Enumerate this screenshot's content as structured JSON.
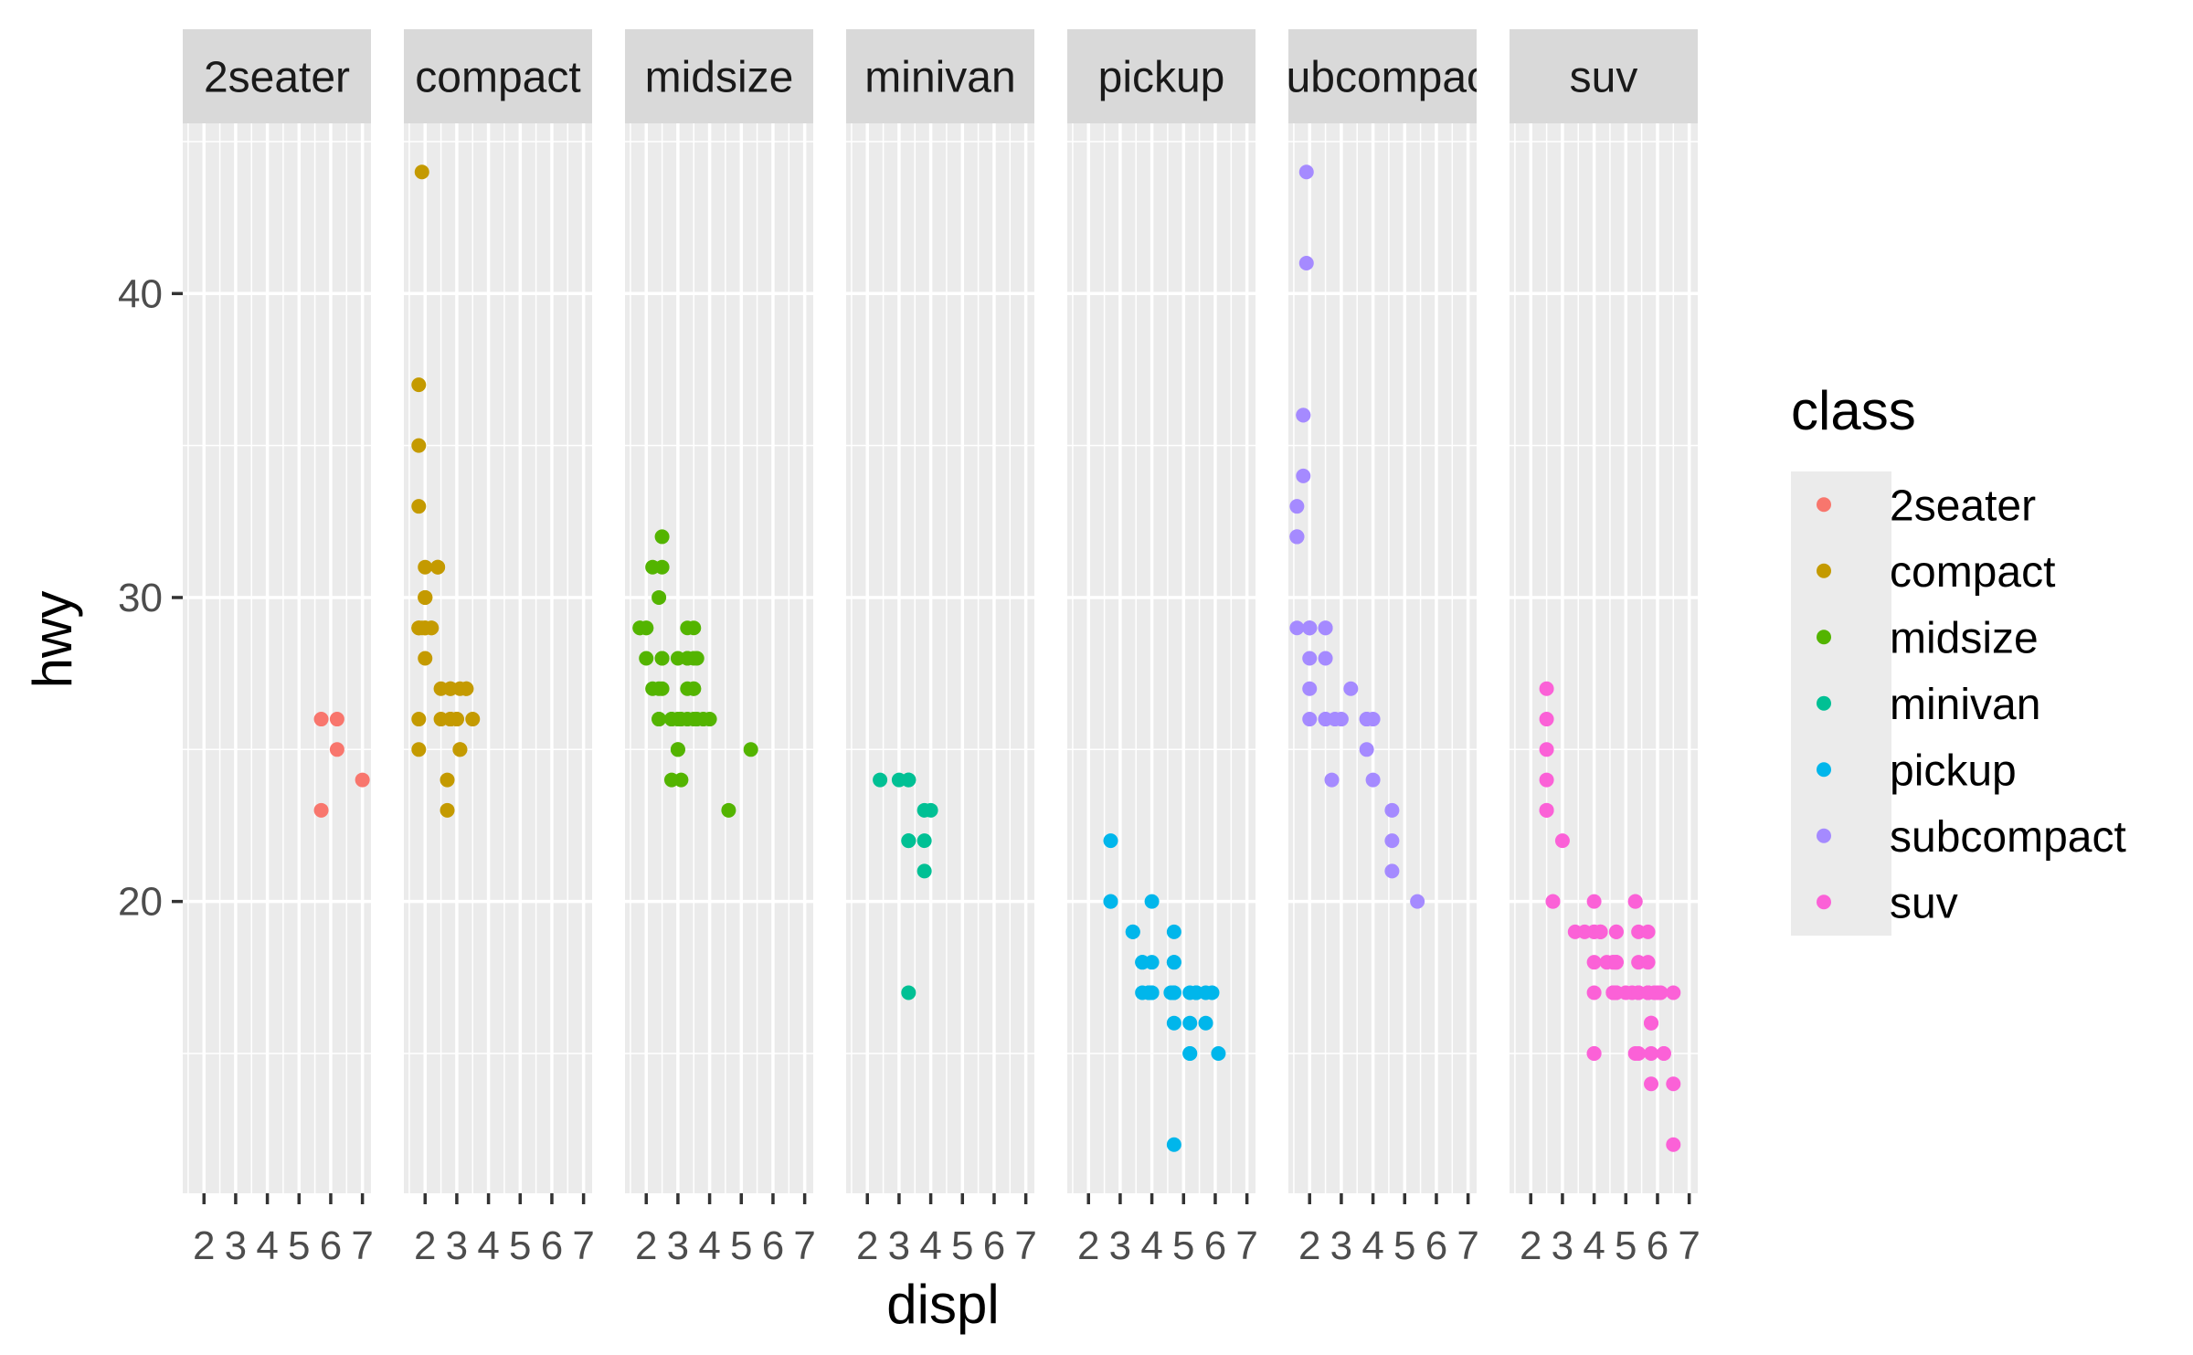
{
  "chart_data": {
    "type": "scatter",
    "facet": "class",
    "panels": [
      "2seater",
      "compact",
      "midsize",
      "minivan",
      "pickup",
      "subcompact",
      "suv"
    ],
    "xlabel": "displ",
    "ylabel": "hwy",
    "x_ticks": [
      2,
      3,
      4,
      5,
      6,
      7
    ],
    "y_ticks": [
      20,
      30,
      40
    ],
    "xlim": [
      1.33,
      7.27
    ],
    "ylim": [
      10.4,
      45.6
    ],
    "grid": true,
    "legend": {
      "title": "class",
      "placement": "right",
      "entries": [
        "2seater",
        "compact",
        "midsize",
        "minivan",
        "pickup",
        "subcompact",
        "suv"
      ]
    },
    "colors": {
      "2seater": "#F8766D",
      "compact": "#C49A00",
      "midsize": "#53B400",
      "minivan": "#00C094",
      "pickup": "#00B6EB",
      "subcompact": "#A58AFF",
      "suv": "#FB61D7"
    },
    "series": [
      {
        "name": "2seater",
        "points": [
          [
            5.7,
            26
          ],
          [
            5.7,
            23
          ],
          [
            6.2,
            26
          ],
          [
            6.2,
            25
          ],
          [
            7.0,
            24
          ]
        ]
      },
      {
        "name": "compact",
        "points": [
          [
            1.8,
            29
          ],
          [
            1.8,
            29
          ],
          [
            2.0,
            31
          ],
          [
            2.0,
            30
          ],
          [
            2.8,
            26
          ],
          [
            2.8,
            26
          ],
          [
            3.1,
            27
          ],
          [
            1.8,
            26
          ],
          [
            1.8,
            25
          ],
          [
            2.0,
            28
          ],
          [
            2.0,
            29
          ],
          [
            2.8,
            26
          ],
          [
            2.8,
            27
          ],
          [
            3.1,
            25
          ],
          [
            3.1,
            25
          ],
          [
            2.2,
            29
          ],
          [
            2.2,
            29
          ],
          [
            2.4,
            31
          ],
          [
            2.4,
            31
          ],
          [
            3.0,
            26
          ],
          [
            3.0,
            26
          ],
          [
            3.3,
            27
          ],
          [
            1.9,
            44
          ],
          [
            1.9,
            29
          ],
          [
            1.8,
            29
          ],
          [
            1.8,
            37
          ],
          [
            1.8,
            35
          ],
          [
            1.8,
            33
          ],
          [
            2.0,
            30
          ],
          [
            2.0,
            30
          ],
          [
            2.8,
            27
          ],
          [
            2.0,
            29
          ],
          [
            2.0,
            29
          ],
          [
            2.5,
            27
          ],
          [
            2.5,
            26
          ],
          [
            2.7,
            23
          ],
          [
            2.7,
            24
          ],
          [
            3.3,
            27
          ],
          [
            3.5,
            26
          ]
        ]
      },
      {
        "name": "midsize",
        "points": [
          [
            2.4,
            27
          ],
          [
            2.4,
            30
          ],
          [
            3.1,
            26
          ],
          [
            3.5,
            29
          ],
          [
            3.6,
            26
          ],
          [
            2.4,
            26
          ],
          [
            3.0,
            26
          ],
          [
            3.3,
            27
          ],
          [
            3.3,
            28
          ],
          [
            3.3,
            26
          ],
          [
            3.8,
            26
          ],
          [
            4.0,
            26
          ],
          [
            4.6,
            23
          ],
          [
            5.3,
            25
          ],
          [
            2.5,
            28
          ],
          [
            2.5,
            28
          ],
          [
            2.5,
            27
          ],
          [
            3.5,
            27
          ],
          [
            3.5,
            28
          ],
          [
            1.8,
            29
          ],
          [
            1.8,
            29
          ],
          [
            2.0,
            28
          ],
          [
            2.0,
            29
          ],
          [
            2.8,
            26
          ],
          [
            2.8,
            26
          ],
          [
            3.6,
            28
          ],
          [
            2.5,
            32
          ],
          [
            2.5,
            31
          ],
          [
            2.2,
            31
          ],
          [
            2.2,
            27
          ],
          [
            2.4,
            26
          ],
          [
            3.0,
            25
          ],
          [
            3.0,
            25
          ],
          [
            3.5,
            26
          ],
          [
            3.3,
            28
          ],
          [
            3.3,
            29
          ],
          [
            2.0,
            29
          ],
          [
            3.0,
            28
          ],
          [
            3.5,
            27
          ],
          [
            2.8,
            24
          ],
          [
            3.1,
            24
          ]
        ]
      },
      {
        "name": "minivan",
        "points": [
          [
            2.4,
            24
          ],
          [
            3.0,
            24
          ],
          [
            3.3,
            22
          ],
          [
            3.3,
            22
          ],
          [
            3.3,
            24
          ],
          [
            3.3,
            24
          ],
          [
            3.3,
            17
          ],
          [
            3.8,
            22
          ],
          [
            3.8,
            21
          ],
          [
            3.8,
            23
          ],
          [
            4.0,
            23
          ]
        ]
      },
      {
        "name": "pickup",
        "points": [
          [
            2.7,
            20
          ],
          [
            2.7,
            22
          ],
          [
            3.4,
            19
          ],
          [
            3.7,
            17
          ],
          [
            3.9,
            17
          ],
          [
            4.7,
            17
          ],
          [
            4.7,
            19
          ],
          [
            4.7,
            18
          ],
          [
            5.2,
            17
          ],
          [
            5.2,
            16
          ],
          [
            5.7,
            17
          ],
          [
            5.9,
            17
          ],
          [
            3.7,
            18
          ],
          [
            3.7,
            18
          ],
          [
            3.9,
            17
          ],
          [
            4.7,
            12
          ],
          [
            4.7,
            17
          ],
          [
            5.2,
            15
          ],
          [
            5.2,
            15
          ],
          [
            5.7,
            16
          ],
          [
            6.1,
            15
          ],
          [
            2.7,
            20
          ],
          [
            3.4,
            19
          ],
          [
            4.0,
            20
          ],
          [
            4.0,
            17
          ],
          [
            4.6,
            17
          ],
          [
            5.4,
            17
          ],
          [
            4.0,
            17
          ],
          [
            4.7,
            16
          ],
          [
            5.4,
            17
          ],
          [
            4.0,
            18
          ],
          [
            4.7,
            18
          ],
          [
            5.4,
            17
          ]
        ]
      },
      {
        "name": "subcompact",
        "points": [
          [
            3.8,
            26
          ],
          [
            3.8,
            25
          ],
          [
            4.0,
            26
          ],
          [
            4.0,
            24
          ],
          [
            4.6,
            23
          ],
          [
            4.6,
            22
          ],
          [
            4.6,
            21
          ],
          [
            5.4,
            20
          ],
          [
            1.6,
            32
          ],
          [
            1.6,
            33
          ],
          [
            1.6,
            32
          ],
          [
            1.6,
            29
          ],
          [
            1.6,
            32
          ],
          [
            1.8,
            34
          ],
          [
            1.8,
            36
          ],
          [
            1.8,
            36
          ],
          [
            2.0,
            29
          ],
          [
            2.0,
            26
          ],
          [
            2.0,
            27
          ],
          [
            2.5,
            26
          ],
          [
            2.5,
            26
          ],
          [
            2.5,
            29
          ],
          [
            2.8,
            26
          ],
          [
            1.9,
            41
          ],
          [
            1.9,
            44
          ],
          [
            2.0,
            29
          ],
          [
            2.0,
            29
          ],
          [
            2.0,
            28
          ],
          [
            2.0,
            29
          ],
          [
            2.5,
            28
          ],
          [
            2.5,
            29
          ],
          [
            2.7,
            24
          ],
          [
            3.0,
            26
          ],
          [
            3.3,
            27
          ],
          [
            3.8,
            26
          ]
        ]
      },
      {
        "name": "suv",
        "points": [
          [
            5.3,
            20
          ],
          [
            5.3,
            15
          ],
          [
            5.3,
            20
          ],
          [
            5.7,
            17
          ],
          [
            6.0,
            17
          ],
          [
            5.7,
            19
          ],
          [
            6.5,
            17
          ],
          [
            4.7,
            17
          ],
          [
            4.7,
            19
          ],
          [
            5.2,
            17
          ],
          [
            5.7,
            18
          ],
          [
            5.9,
            17
          ],
          [
            4.6,
            17
          ],
          [
            5.4,
            17
          ],
          [
            5.4,
            15
          ],
          [
            4.0,
            19
          ],
          [
            4.0,
            19
          ],
          [
            4.0,
            17
          ],
          [
            4.0,
            15
          ],
          [
            4.6,
            18
          ],
          [
            5.0,
            17
          ],
          [
            4.2,
            19
          ],
          [
            4.2,
            19
          ],
          [
            4.6,
            17
          ],
          [
            4.6,
            18
          ],
          [
            5.4,
            17
          ],
          [
            3.0,
            22
          ],
          [
            3.7,
            19
          ],
          [
            4.0,
            18
          ],
          [
            4.7,
            17
          ],
          [
            4.7,
            18
          ],
          [
            4.7,
            18
          ],
          [
            5.7,
            17
          ],
          [
            6.1,
            17
          ],
          [
            4.0,
            15
          ],
          [
            4.2,
            19
          ],
          [
            4.4,
            18
          ],
          [
            4.6,
            17
          ],
          [
            5.4,
            17
          ],
          [
            5.4,
            18
          ],
          [
            5.4,
            19
          ],
          [
            5.7,
            17
          ],
          [
            6.5,
            12
          ],
          [
            5.8,
            16
          ],
          [
            5.8,
            16
          ],
          [
            5.8,
            15
          ],
          [
            5.8,
            14
          ],
          [
            6.2,
            15
          ],
          [
            6.2,
            15
          ],
          [
            6.5,
            14
          ],
          [
            2.5,
            25
          ],
          [
            2.5,
            26
          ],
          [
            2.5,
            24
          ],
          [
            2.5,
            27
          ],
          [
            2.5,
            23
          ],
          [
            2.5,
            23
          ],
          [
            2.7,
            20
          ],
          [
            2.7,
            20
          ],
          [
            3.4,
            19
          ],
          [
            4.0,
            20
          ],
          [
            4.7,
            17
          ],
          [
            4.7,
            19
          ],
          [
            4.7,
            18
          ],
          [
            5.7,
            17
          ]
        ]
      }
    ]
  }
}
